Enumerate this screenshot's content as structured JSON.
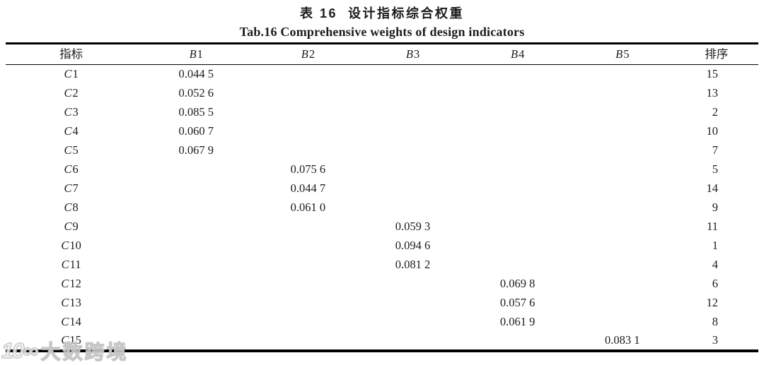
{
  "caption": {
    "zh": "表 16  设计指标综合权重",
    "en": "Tab.16 Comprehensive weights of design indicators"
  },
  "table": {
    "columns": {
      "indicator": "指标",
      "rank": "排序",
      "weights": [
        {
          "letter": "B",
          "index": "1"
        },
        {
          "letter": "B",
          "index": "2"
        },
        {
          "letter": "B",
          "index": "3"
        },
        {
          "letter": "B",
          "index": "4"
        },
        {
          "letter": "B",
          "index": "5"
        }
      ]
    },
    "rows": [
      {
        "letter": "C",
        "index": "1",
        "values": [
          "0.044 5",
          "",
          "",
          "",
          ""
        ],
        "rank": "15"
      },
      {
        "letter": "C",
        "index": "2",
        "values": [
          "0.052 6",
          "",
          "",
          "",
          ""
        ],
        "rank": "13"
      },
      {
        "letter": "C",
        "index": "3",
        "values": [
          "0.085 5",
          "",
          "",
          "",
          ""
        ],
        "rank": "2"
      },
      {
        "letter": "C",
        "index": "4",
        "values": [
          "0.060 7",
          "",
          "",
          "",
          ""
        ],
        "rank": "10"
      },
      {
        "letter": "C",
        "index": "5",
        "values": [
          "0.067 9",
          "",
          "",
          "",
          ""
        ],
        "rank": "7"
      },
      {
        "letter": "C",
        "index": "6",
        "values": [
          "",
          "0.075 6",
          "",
          "",
          ""
        ],
        "rank": "5"
      },
      {
        "letter": "C",
        "index": "7",
        "values": [
          "",
          "0.044 7",
          "",
          "",
          ""
        ],
        "rank": "14"
      },
      {
        "letter": "C",
        "index": "8",
        "values": [
          "",
          "0.061 0",
          "",
          "",
          ""
        ],
        "rank": "9"
      },
      {
        "letter": "C",
        "index": "9",
        "values": [
          "",
          "",
          "0.059 3",
          "",
          ""
        ],
        "rank": "11"
      },
      {
        "letter": "C",
        "index": "10",
        "values": [
          "",
          "",
          "0.094 6",
          "",
          ""
        ],
        "rank": "1"
      },
      {
        "letter": "C",
        "index": "11",
        "values": [
          "",
          "",
          "0.081 2",
          "",
          ""
        ],
        "rank": "4"
      },
      {
        "letter": "C",
        "index": "12",
        "values": [
          "",
          "",
          "",
          "0.069 8",
          ""
        ],
        "rank": "6"
      },
      {
        "letter": "C",
        "index": "13",
        "values": [
          "",
          "",
          "",
          "0.057 6",
          ""
        ],
        "rank": "12"
      },
      {
        "letter": "C",
        "index": "14",
        "values": [
          "",
          "",
          "",
          "0.061 9",
          ""
        ],
        "rank": "8"
      },
      {
        "letter": "C",
        "index": "15",
        "values": [
          "",
          "",
          "",
          "",
          "0.083 1"
        ],
        "rank": "3"
      }
    ]
  },
  "watermark": {
    "logo": "10∞",
    "text": "大数跨境"
  }
}
